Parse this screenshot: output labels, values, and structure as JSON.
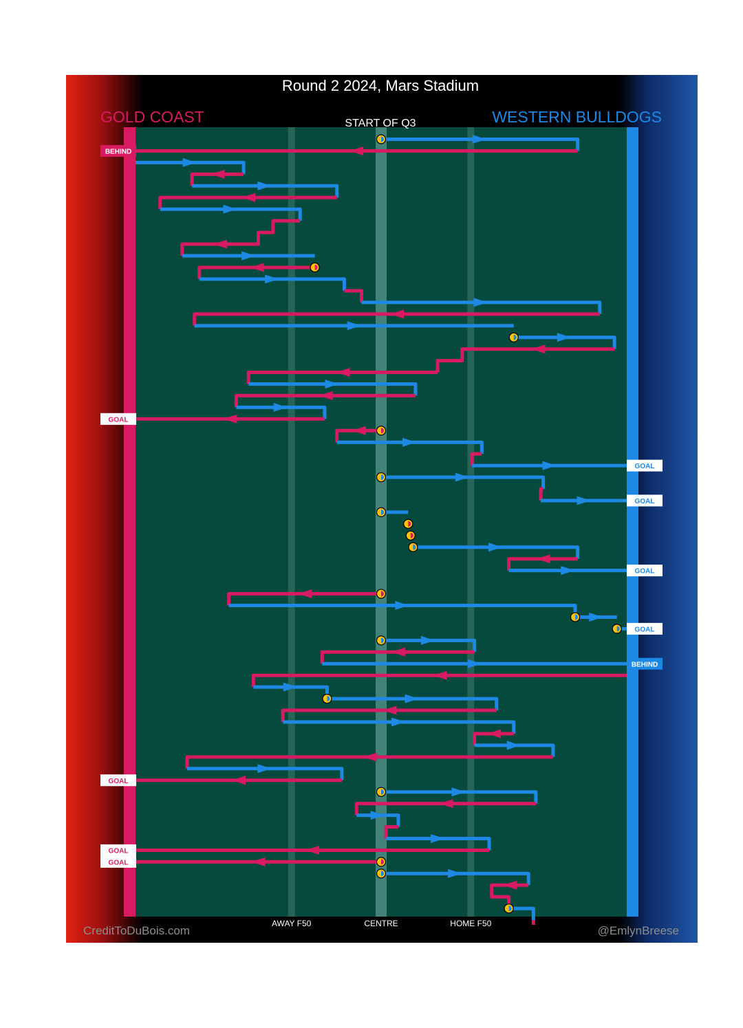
{
  "title": "Round 2 2024, Mars Stadium",
  "teams": {
    "away": {
      "name": "GOLD COAST",
      "color": "#d81b60"
    },
    "home": {
      "name": "WESTERN BULLDOGS",
      "color": "#1e88e5"
    }
  },
  "period_label": "START OF Q3",
  "credits": {
    "left": "CreditToDuBois.com",
    "right": "@EmlynBreese"
  },
  "colors": {
    "field": "#054a3c",
    "stoppage_marker": "#ffc107",
    "goal_tag_bg": "#ffffff"
  },
  "chart_data": {
    "type": "line",
    "description_hidden": false,
    "x_axis": {
      "range": [
        -1,
        1
      ],
      "ticks": [
        {
          "value": -0.365,
          "label": "AWAY F50"
        },
        {
          "value": 0,
          "label": "CENTRE"
        },
        {
          "value": 0.365,
          "label": "HOME F50"
        }
      ]
    },
    "chains": [
      {
        "team": "home",
        "stoppage": true,
        "pts": [
          [
            0,
            2
          ],
          [
            0.8,
            2
          ],
          [
            0.8,
            3
          ]
        ]
      },
      {
        "team": "away",
        "pts": [
          [
            0.8,
            3
          ],
          [
            -1,
            3
          ]
        ],
        "end": {
          "label": "BEHIND"
        }
      },
      {
        "team": "home",
        "pts": [
          [
            -1,
            4
          ],
          [
            -0.56,
            4
          ],
          [
            -0.56,
            5
          ]
        ]
      },
      {
        "team": "away",
        "pts": [
          [
            -0.56,
            5
          ],
          [
            -0.77,
            5
          ],
          [
            -0.77,
            6
          ]
        ]
      },
      {
        "team": "home",
        "pts": [
          [
            -0.77,
            6
          ],
          [
            -0.18,
            6
          ],
          [
            -0.18,
            7
          ]
        ]
      },
      {
        "team": "away",
        "pts": [
          [
            -0.18,
            7
          ],
          [
            -0.9,
            7
          ],
          [
            -0.9,
            8
          ]
        ]
      },
      {
        "team": "home",
        "pts": [
          [
            -0.9,
            8
          ],
          [
            -0.33,
            8
          ],
          [
            -0.33,
            9
          ]
        ]
      },
      {
        "team": "away",
        "pts": [
          [
            -0.33,
            9
          ],
          [
            -0.44,
            9
          ],
          [
            -0.44,
            10
          ],
          [
            -0.5,
            10
          ],
          [
            -0.5,
            11
          ],
          [
            -0.81,
            11
          ],
          [
            -0.81,
            12
          ]
        ]
      },
      {
        "team": "home",
        "pts": [
          [
            -0.81,
            12
          ],
          [
            -0.27,
            12
          ]
        ]
      },
      {
        "team": "away",
        "stoppage": true,
        "pts": [
          [
            -0.27,
            13
          ],
          [
            -0.74,
            13
          ],
          [
            -0.74,
            14
          ]
        ]
      },
      {
        "team": "home",
        "pts": [
          [
            -0.74,
            14
          ],
          [
            -0.15,
            14
          ],
          [
            -0.15,
            15
          ]
        ]
      },
      {
        "team": "away",
        "pts": [
          [
            -0.15,
            15
          ],
          [
            -0.08,
            15
          ],
          [
            -0.08,
            16
          ]
        ]
      },
      {
        "team": "home",
        "pts": [
          [
            -0.08,
            16
          ],
          [
            0.89,
            16
          ],
          [
            0.89,
            17
          ]
        ]
      },
      {
        "team": "away",
        "pts": [
          [
            0.89,
            17
          ],
          [
            -0.76,
            17
          ],
          [
            -0.76,
            18
          ]
        ]
      },
      {
        "team": "home",
        "pts": [
          [
            -0.76,
            18
          ],
          [
            0.54,
            18
          ]
        ]
      },
      {
        "team": "home",
        "stoppage": true,
        "pts": [
          [
            0.54,
            19
          ],
          [
            0.95,
            19
          ],
          [
            0.95,
            20
          ]
        ]
      },
      {
        "team": "away",
        "pts": [
          [
            0.95,
            20
          ],
          [
            0.33,
            20
          ],
          [
            0.33,
            21
          ],
          [
            0.23,
            21
          ],
          [
            0.23,
            22
          ]
        ]
      },
      {
        "team": "away",
        "pts": [
          [
            0.23,
            22
          ],
          [
            -0.54,
            22
          ],
          [
            -0.54,
            23
          ]
        ]
      },
      {
        "team": "home",
        "pts": [
          [
            -0.54,
            23
          ],
          [
            0.14,
            23
          ],
          [
            0.14,
            24
          ]
        ]
      },
      {
        "team": "away",
        "pts": [
          [
            0.14,
            24
          ],
          [
            -0.59,
            24
          ],
          [
            -0.59,
            25
          ]
        ]
      },
      {
        "team": "home",
        "pts": [
          [
            -0.59,
            25
          ],
          [
            -0.23,
            25
          ],
          [
            -0.23,
            26
          ]
        ]
      },
      {
        "team": "away",
        "pts": [
          [
            -0.23,
            26
          ],
          [
            -1,
            26
          ]
        ],
        "end": {
          "label": "GOAL"
        }
      },
      {
        "team": "away",
        "stoppage": true,
        "pts": [
          [
            0,
            27
          ],
          [
            -0.18,
            27
          ],
          [
            -0.18,
            28
          ]
        ]
      },
      {
        "team": "home",
        "pts": [
          [
            -0.18,
            28
          ],
          [
            0.41,
            28
          ],
          [
            0.41,
            29
          ]
        ]
      },
      {
        "team": "away",
        "pts": [
          [
            0.41,
            29
          ],
          [
            0.37,
            29
          ],
          [
            0.37,
            30
          ]
        ]
      },
      {
        "team": "home",
        "pts": [
          [
            0.37,
            30
          ],
          [
            1,
            30
          ]
        ],
        "end": {
          "label": "GOAL"
        }
      },
      {
        "team": "home",
        "stoppage": true,
        "pts": [
          [
            0,
            31
          ],
          [
            0.66,
            31
          ],
          [
            0.66,
            32
          ]
        ]
      },
      {
        "team": "away",
        "pts": [
          [
            0.66,
            32
          ],
          [
            0.65,
            32
          ],
          [
            0.65,
            33
          ]
        ]
      },
      {
        "team": "home",
        "pts": [
          [
            0.65,
            33
          ],
          [
            1,
            33
          ]
        ],
        "end": {
          "label": "GOAL"
        }
      },
      {
        "team": "home",
        "stoppage": true,
        "pts": [
          [
            0,
            34
          ],
          [
            0.11,
            34
          ]
        ]
      },
      {
        "team": "away",
        "stoppage": true,
        "pts": [
          [
            0.11,
            35
          ],
          [
            0.12,
            35
          ]
        ]
      },
      {
        "team": "away",
        "stoppage": true,
        "pts": [
          [
            0.12,
            36
          ],
          [
            0.13,
            36
          ]
        ]
      },
      {
        "team": "home",
        "stoppage": true,
        "pts": [
          [
            0.13,
            37
          ],
          [
            0.8,
            37
          ],
          [
            0.8,
            38
          ]
        ]
      },
      {
        "team": "away",
        "pts": [
          [
            0.8,
            38
          ],
          [
            0.52,
            38
          ],
          [
            0.52,
            39
          ]
        ]
      },
      {
        "team": "home",
        "pts": [
          [
            0.52,
            39
          ],
          [
            1,
            39
          ]
        ],
        "end": {
          "label": "GOAL"
        }
      },
      {
        "team": "away",
        "stoppage": true,
        "pts": [
          [
            0,
            41
          ],
          [
            -0.62,
            41
          ],
          [
            -0.62,
            42
          ]
        ]
      },
      {
        "team": "home",
        "pts": [
          [
            -0.62,
            42
          ],
          [
            0.79,
            42
          ],
          [
            0.79,
            43
          ]
        ]
      },
      {
        "team": "home",
        "stoppage": true,
        "pts": [
          [
            0.79,
            43
          ],
          [
            0.96,
            43
          ]
        ]
      },
      {
        "team": "home",
        "stoppage": true,
        "pts": [
          [
            0.96,
            44
          ],
          [
            1,
            44
          ]
        ],
        "end": {
          "label": "GOAL"
        }
      },
      {
        "team": "home",
        "stoppage": true,
        "pts": [
          [
            0,
            45
          ],
          [
            0.38,
            45
          ],
          [
            0.38,
            46
          ]
        ]
      },
      {
        "team": "away",
        "pts": [
          [
            0.38,
            46
          ],
          [
            -0.24,
            46
          ],
          [
            -0.24,
            47
          ]
        ]
      },
      {
        "team": "home",
        "pts": [
          [
            -0.24,
            47
          ],
          [
            1,
            47
          ]
        ],
        "end": {
          "label": "BEHIND"
        }
      },
      {
        "team": "away",
        "pts": [
          [
            1,
            48
          ],
          [
            -0.52,
            48
          ],
          [
            -0.52,
            49
          ]
        ]
      },
      {
        "team": "home",
        "pts": [
          [
            -0.52,
            49
          ],
          [
            -0.22,
            49
          ],
          [
            -0.22,
            50
          ]
        ]
      },
      {
        "team": "home",
        "stoppage": true,
        "pts": [
          [
            -0.22,
            50
          ],
          [
            0.47,
            50
          ],
          [
            0.47,
            51
          ]
        ]
      },
      {
        "team": "away",
        "pts": [
          [
            0.47,
            51
          ],
          [
            -0.4,
            51
          ],
          [
            -0.4,
            52
          ]
        ]
      },
      {
        "team": "home",
        "pts": [
          [
            -0.4,
            52
          ],
          [
            0.54,
            52
          ],
          [
            0.54,
            53
          ]
        ]
      },
      {
        "team": "away",
        "pts": [
          [
            0.54,
            53
          ],
          [
            0.38,
            53
          ],
          [
            0.38,
            54
          ]
        ]
      },
      {
        "team": "home",
        "pts": [
          [
            0.38,
            54
          ],
          [
            0.7,
            54
          ],
          [
            0.7,
            55
          ]
        ]
      },
      {
        "team": "away",
        "pts": [
          [
            0.7,
            55
          ],
          [
            -0.79,
            55
          ],
          [
            -0.79,
            56
          ]
        ]
      },
      {
        "team": "home",
        "pts": [
          [
            -0.79,
            56
          ],
          [
            -0.16,
            56
          ],
          [
            -0.16,
            57
          ]
        ]
      },
      {
        "team": "away",
        "pts": [
          [
            -0.16,
            57
          ],
          [
            -1,
            57
          ]
        ],
        "end": {
          "label": "GOAL"
        }
      },
      {
        "team": "home",
        "stoppage": true,
        "pts": [
          [
            0,
            58
          ],
          [
            0.63,
            58
          ],
          [
            0.63,
            59
          ]
        ]
      },
      {
        "team": "away",
        "pts": [
          [
            0.63,
            59
          ],
          [
            -0.1,
            59
          ],
          [
            -0.1,
            60
          ]
        ]
      },
      {
        "team": "home",
        "pts": [
          [
            -0.1,
            60
          ],
          [
            0.07,
            60
          ],
          [
            0.07,
            61
          ]
        ]
      },
      {
        "team": "away",
        "pts": [
          [
            0.07,
            61
          ],
          [
            0.02,
            61
          ],
          [
            0.02,
            62
          ]
        ]
      },
      {
        "team": "home",
        "pts": [
          [
            0.02,
            62
          ],
          [
            0.44,
            62
          ],
          [
            0.44,
            63
          ]
        ]
      },
      {
        "team": "away",
        "pts": [
          [
            0.44,
            63
          ],
          [
            -1,
            63
          ]
        ],
        "end": {
          "label": "GOAL"
        }
      },
      {
        "team": "away",
        "stoppage": true,
        "pts": [
          [
            0,
            64
          ],
          [
            -1,
            64
          ]
        ],
        "end": {
          "label": "GOAL"
        }
      },
      {
        "team": "home",
        "stoppage": true,
        "pts": [
          [
            0,
            65
          ],
          [
            0.6,
            65
          ],
          [
            0.6,
            66
          ]
        ]
      },
      {
        "team": "away",
        "pts": [
          [
            0.6,
            66
          ],
          [
            0.45,
            66
          ],
          [
            0.45,
            67
          ],
          [
            0.52,
            67
          ],
          [
            0.52,
            68
          ]
        ]
      },
      {
        "team": "home",
        "stoppage": true,
        "pts": [
          [
            0.52,
            68
          ],
          [
            0.62,
            68
          ],
          [
            0.62,
            69
          ]
        ]
      },
      {
        "team": "away",
        "pts": [
          [
            0.62,
            69
          ],
          [
            0.62,
            69.4
          ]
        ]
      }
    ]
  }
}
